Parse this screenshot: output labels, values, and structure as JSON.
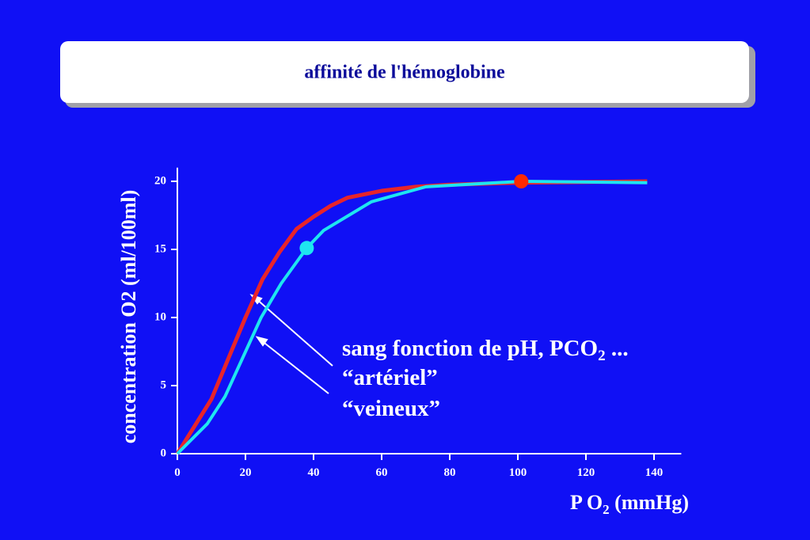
{
  "chart_data": {
    "type": "line",
    "title": "affinité de l'hémoglobine",
    "y_label": "concentration O2 (ml/100ml)",
    "x_label": {
      "text": "P O",
      "sub": "2",
      "rest": " (mmHg)"
    },
    "annotation": {
      "text": "sang fonction de pH, PCO",
      "sub": "2",
      "rest": " ..."
    },
    "xlim": [
      0,
      148
    ],
    "ylim": [
      0,
      21
    ],
    "xticks": [
      0,
      20,
      40,
      60,
      80,
      100,
      120,
      140
    ],
    "yticks": [
      0,
      5,
      10,
      15,
      20
    ],
    "series": [
      {
        "name": "“artériel”",
        "color": "#e8242a",
        "x": [
          0,
          5,
          10,
          15,
          20,
          25,
          30,
          35,
          40,
          45,
          50,
          60,
          70,
          80,
          100,
          120,
          138
        ],
        "values": [
          0,
          2,
          4,
          7,
          10,
          12.8,
          14.8,
          16.5,
          17.4,
          18.2,
          18.8,
          19.3,
          19.6,
          19.75,
          19.9,
          19.95,
          20
        ]
      },
      {
        "name": "“veineux”",
        "color": "#1ee6f0",
        "x": [
          0,
          8.8,
          14,
          24.6,
          30.5,
          38,
          43,
          57,
          73,
          101,
          138
        ],
        "values": [
          0,
          2.2,
          4.2,
          10,
          12.5,
          15.1,
          16.4,
          18.5,
          19.6,
          20,
          19.9
        ]
      }
    ],
    "points": [
      {
        "x": 38,
        "y": 15.1,
        "color": "#1ee6f0"
      },
      {
        "x": 101,
        "y": 20,
        "color": "#ff2a00"
      }
    ]
  }
}
